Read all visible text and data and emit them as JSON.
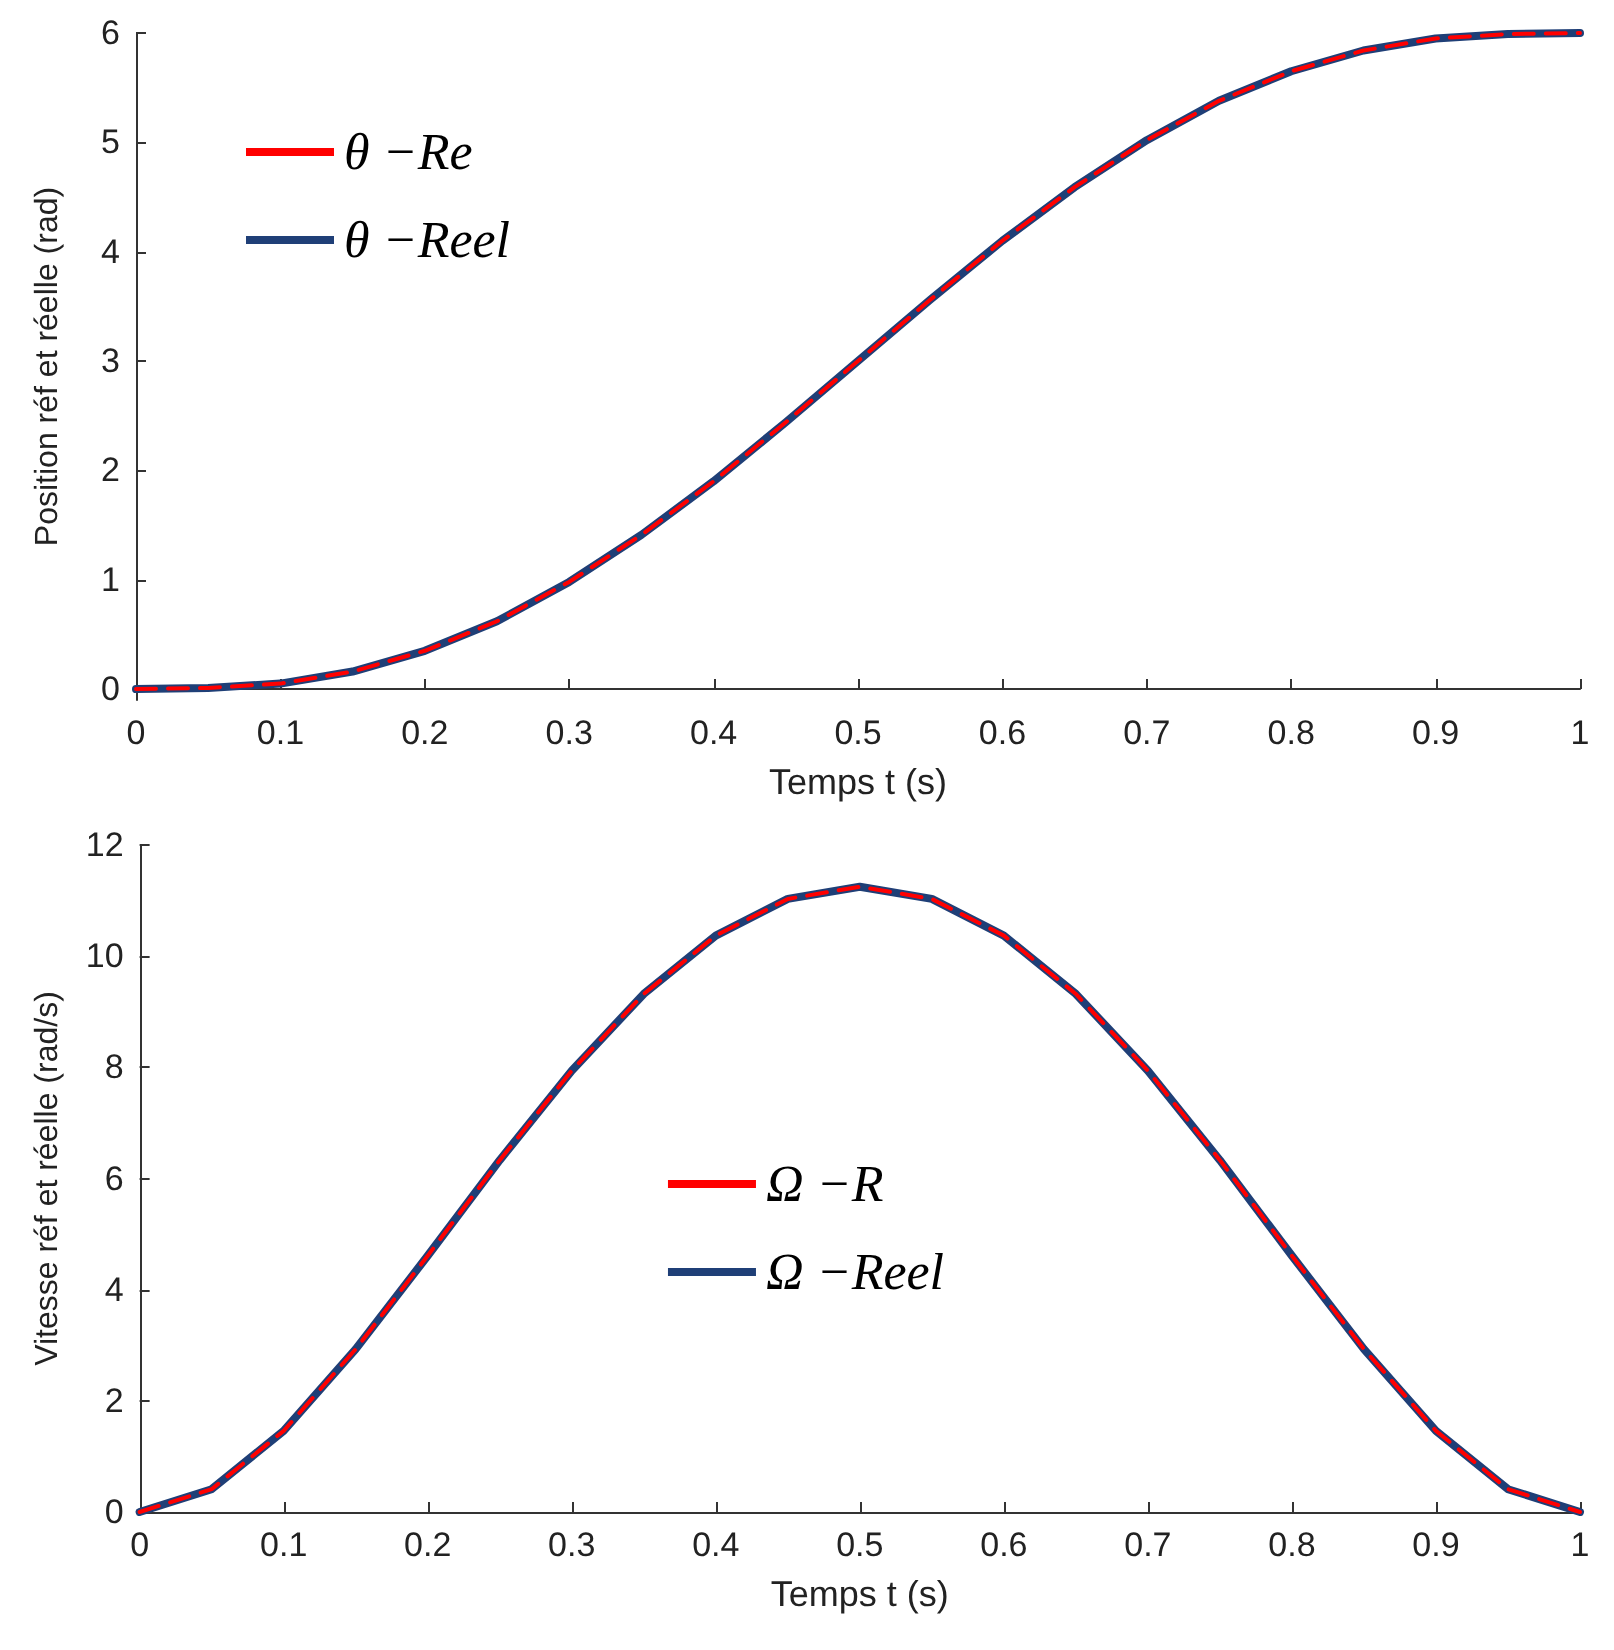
{
  "chart_data": [
    {
      "type": "line",
      "xlabel": "Temps t (s)",
      "ylabel": "Position réf et réelle (rad)",
      "x": [
        0,
        0.05,
        0.1,
        0.15,
        0.2,
        0.25,
        0.3,
        0.35,
        0.4,
        0.45,
        0.5,
        0.55,
        0.6,
        0.65,
        0.7,
        0.75,
        0.8,
        0.85,
        0.9,
        0.95,
        1
      ],
      "series": [
        {
          "name": "θ −Re",
          "color": "#ff0000",
          "line_style": "dashed",
          "values": [
            0,
            0.01,
            0.05,
            0.16,
            0.35,
            0.62,
            0.98,
            1.41,
            1.9,
            2.44,
            3,
            3.56,
            4.1,
            4.59,
            5.02,
            5.38,
            5.65,
            5.84,
            5.95,
            5.99,
            6
          ]
        },
        {
          "name": "θ −Reel",
          "color": "#1f3f77",
          "line_style": "solid",
          "values": [
            0,
            0.01,
            0.05,
            0.16,
            0.35,
            0.62,
            0.98,
            1.41,
            1.9,
            2.44,
            3,
            3.56,
            4.1,
            4.59,
            5.02,
            5.38,
            5.65,
            5.84,
            5.95,
            5.99,
            6
          ]
        }
      ],
      "xlim": [
        0,
        1
      ],
      "xticks": [
        0,
        0.1,
        0.2,
        0.3,
        0.4,
        0.5,
        0.6,
        0.7,
        0.8,
        0.9,
        1
      ],
      "ylim": [
        -0.1,
        6
      ],
      "yticks": [
        0,
        1,
        2,
        3,
        4,
        5,
        6
      ],
      "grid": false,
      "legend": "top left",
      "marker": "none"
    },
    {
      "type": "line",
      "xlabel": "Temps t (s)",
      "ylabel": "Vitesse réf et réelle (rad/s)",
      "x": [
        0,
        0.05,
        0.1,
        0.15,
        0.2,
        0.25,
        0.3,
        0.35,
        0.4,
        0.45,
        0.5,
        0.55,
        0.6,
        0.65,
        0.7,
        0.75,
        0.8,
        0.85,
        0.9,
        0.95,
        1
      ],
      "series": [
        {
          "name": "Ω −R",
          "color": "#ff0000",
          "line_style": "dashed",
          "values": [
            0,
            0.41,
            1.46,
            2.93,
            4.61,
            6.33,
            7.94,
            9.32,
            10.37,
            11.03,
            11.25,
            11.03,
            10.37,
            9.32,
            7.94,
            6.33,
            4.61,
            2.93,
            1.46,
            0.41,
            0
          ]
        },
        {
          "name": "Ω −Reel",
          "color": "#1f3f77",
          "line_style": "solid",
          "values": [
            0,
            0.41,
            1.46,
            2.93,
            4.61,
            6.33,
            7.94,
            9.32,
            10.37,
            11.03,
            11.25,
            11.03,
            10.37,
            9.32,
            7.94,
            6.33,
            4.61,
            2.93,
            1.46,
            0.41,
            0
          ]
        }
      ],
      "xlim": [
        0,
        1
      ],
      "xticks": [
        0,
        0.1,
        0.2,
        0.3,
        0.4,
        0.5,
        0.6,
        0.7,
        0.8,
        0.9,
        1
      ],
      "ylim": [
        0,
        12
      ],
      "yticks": [
        0,
        2,
        4,
        6,
        8,
        10,
        12
      ],
      "grid": false,
      "legend": "center",
      "marker": "none"
    }
  ]
}
